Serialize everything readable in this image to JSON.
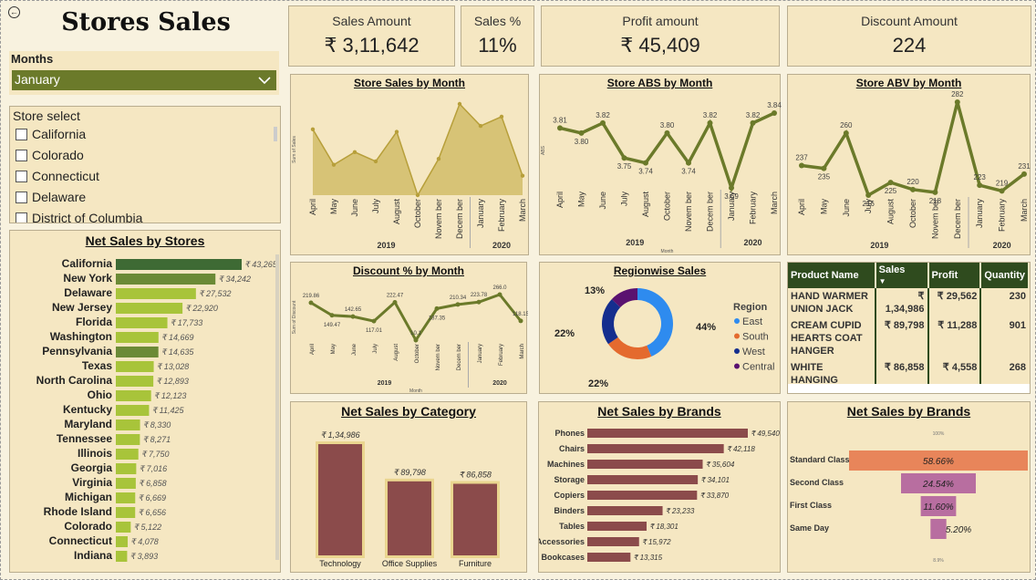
{
  "title": "Stores Sales",
  "filters": {
    "months_label": "Months",
    "months_value": "January",
    "store_label": "Store select",
    "stores": [
      "California",
      "Colorado",
      "Connecticut",
      "Delaware",
      "District of Columbia"
    ]
  },
  "kpis": [
    {
      "label": "Sales Amount",
      "value": "₹ 3,11,642"
    },
    {
      "label": "Sales %",
      "value": "11%"
    },
    {
      "label": "Profit amount",
      "value": "₹ 45,409"
    },
    {
      "label": "Discount Amount",
      "value": "224"
    }
  ],
  "months": [
    "April",
    "May",
    "June",
    "July",
    "August",
    "October",
    "Novem ber",
    "Decem ber",
    "January",
    "February",
    "March"
  ],
  "years": [
    "2019",
    "2020"
  ],
  "chart_data": [
    {
      "id": "store_sales",
      "type": "area",
      "title": "Store Sales by Month",
      "ylabel": "Sum of Sales",
      "xlabel": "",
      "values": [
        80,
        38,
        53,
        42,
        77,
        2,
        45,
        110,
        84,
        95,
        25
      ],
      "color": "#b79f3a"
    },
    {
      "id": "store_abs",
      "type": "line",
      "title": "Store ABS by Month",
      "ylabel": "ABS",
      "xlabel": "Month",
      "values": [
        3.81,
        3.8,
        3.82,
        3.75,
        3.74,
        3.8,
        3.74,
        3.82,
        3.69,
        3.82,
        3.84
      ],
      "labels": [
        "3.81",
        "3.80",
        "3.82",
        "3.75",
        "3.74",
        "3.80",
        "3.74",
        "3.82",
        "3.69",
        "3.82",
        "3.84"
      ],
      "color": "#6b7a2a"
    },
    {
      "id": "store_abv",
      "type": "line",
      "title": "Store ABV by Month",
      "ylabel": "",
      "xlabel": "",
      "values": [
        237,
        235,
        260,
        216,
        225,
        220,
        218,
        282,
        223,
        219,
        231
      ],
      "labels": [
        "237",
        "235",
        "260",
        "216",
        "225",
        "220",
        "218",
        "282",
        "223",
        "219",
        "231"
      ],
      "color": "#6b7a2a"
    },
    {
      "id": "discount",
      "type": "line",
      "title": "Discount % by Month",
      "ylabel": "Sum of Discount",
      "xlabel": "Month",
      "values": [
        219.86,
        149.47,
        142.65,
        117.01,
        222.47,
        10.1,
        187.35,
        210.34,
        223.78,
        266.0,
        118.15
      ],
      "labels": [
        "219.86",
        "149.47",
        "142.65",
        "117.01",
        "222.47",
        "10.1",
        "187.35",
        "210.34",
        "223.78",
        "266.0",
        "118.15"
      ],
      "color": "#6b7a2a"
    },
    {
      "id": "region",
      "type": "pie",
      "title": "Regionwise Sales",
      "legend_title": "Region",
      "slices": [
        {
          "name": "East",
          "value": 44,
          "color": "#2e8bef",
          "label": "44%"
        },
        {
          "name": "South",
          "value": 22,
          "color": "#e46a2e",
          "label": "22%"
        },
        {
          "name": "West",
          "value": 22,
          "color": "#152e8e",
          "label": "22%"
        },
        {
          "name": "Central",
          "value": 13,
          "color": "#5a1270",
          "label": "13%"
        }
      ]
    },
    {
      "id": "net_by_stores",
      "type": "bar",
      "title": "Net Sales by Stores",
      "categories": [
        "California",
        "New York",
        "Delaware",
        "New Jersey",
        "Florida",
        "Washington",
        "Pennsylvania",
        "Texas",
        "North Carolina",
        "Ohio",
        "Kentucky",
        "Maryland",
        "Tennessee",
        "Illinois",
        "Georgia",
        "Virginia",
        "Michigan",
        "Rhode Island",
        "Colorado",
        "Connecticut",
        "Indiana"
      ],
      "values": [
        43265,
        34242,
        27532,
        22920,
        17733,
        14669,
        14635,
        13028,
        12893,
        12123,
        11425,
        8330,
        8271,
        7750,
        7016,
        6858,
        6669,
        6656,
        5122,
        4078,
        3893
      ],
      "labels": [
        "₹ 43,265",
        "₹ 34,242",
        "₹ 27,532",
        "₹ 22,920",
        "₹ 17,733",
        "₹ 14,669",
        "₹ 14,635",
        "₹ 13,028",
        "₹ 12,893",
        "₹ 12,123",
        "₹ 11,425",
        "₹ 8,330",
        "₹ 8,271",
        "₹ 7,750",
        "₹ 7,016",
        "₹ 6,858",
        "₹ 6,669",
        "₹ 6,656",
        "₹ 5,122",
        "₹ 4,078",
        "₹ 3,893"
      ],
      "colors": [
        "#3e6a34",
        "#6b8a36",
        "#a8c43a",
        "#a8c43a",
        "#a8c43a",
        "#a8c43a",
        "#6b8a36",
        "#a8c43a",
        "#a8c43a",
        "#a8c43a",
        "#a8c43a",
        "#a8c43a",
        "#a8c43a",
        "#a8c43a",
        "#a8c43a",
        "#a8c43a",
        "#a8c43a",
        "#a8c43a",
        "#a8c43a",
        "#a8c43a",
        "#a8c43a"
      ]
    },
    {
      "id": "net_by_category",
      "type": "bar",
      "title": "Net Sales by Category",
      "categories": [
        "Technology",
        "Office Supplies",
        "Furniture"
      ],
      "values": [
        134986,
        89798,
        86858
      ],
      "labels": [
        "₹ 1,34,986",
        "₹ 89,798",
        "₹ 86,858"
      ],
      "color": "#8b4b4b"
    },
    {
      "id": "net_by_brands",
      "type": "bar",
      "title": "Net Sales by Brands",
      "categories": [
        "Phones",
        "Chairs",
        "Machines",
        "Storage",
        "Copiers",
        "Binders",
        "Tables",
        "Accessories",
        "Bookcases"
      ],
      "values": [
        49540,
        42118,
        35604,
        34101,
        33870,
        23233,
        18301,
        15972,
        13315
      ],
      "labels": [
        "₹ 49,540",
        "₹ 42,118",
        "₹ 35,604",
        "₹ 34,101",
        "₹ 33,870",
        "₹ 23,233",
        "₹ 18,301",
        "₹ 15,972",
        "₹ 13,315"
      ],
      "color": "#8b4b4b"
    },
    {
      "id": "ship_funnel",
      "type": "bar",
      "title": "Net Sales by Brands",
      "top_label": "100%",
      "bottom_label": "8.9%",
      "categories": [
        "Standard Class",
        "Second Class",
        "First Class",
        "Same Day"
      ],
      "values": [
        58.66,
        24.54,
        11.6,
        5.2
      ],
      "labels": [
        "58.66%",
        "24.54%",
        "11.60%",
        "5.20%"
      ],
      "colors": [
        "#e8855a",
        "#b86ea0",
        "#b86ea0",
        "#b86ea0"
      ]
    }
  ],
  "product_table": {
    "headers": [
      "Product Name",
      "Sales",
      "Profit",
      "Quantity"
    ],
    "rows": [
      {
        "name": "HAND WARMER UNION JACK",
        "sales": "₹ 1,34,986",
        "profit": "₹ 29,562",
        "qty": "230"
      },
      {
        "name": "CREAM CUPID HEARTS COAT HANGER",
        "sales": "₹ 89,798",
        "profit": "₹ 11,288",
        "qty": "901"
      },
      {
        "name": "WHITE HANGING HEART T-LIGHT HOLDER",
        "sales": "₹ 86,858",
        "profit": "₹ 4,558",
        "qty": "268"
      }
    ]
  },
  "icons": {
    "back": "back-arrow-icon",
    "dropdown": "chevron-down-icon",
    "sort": "sort-down-icon"
  }
}
